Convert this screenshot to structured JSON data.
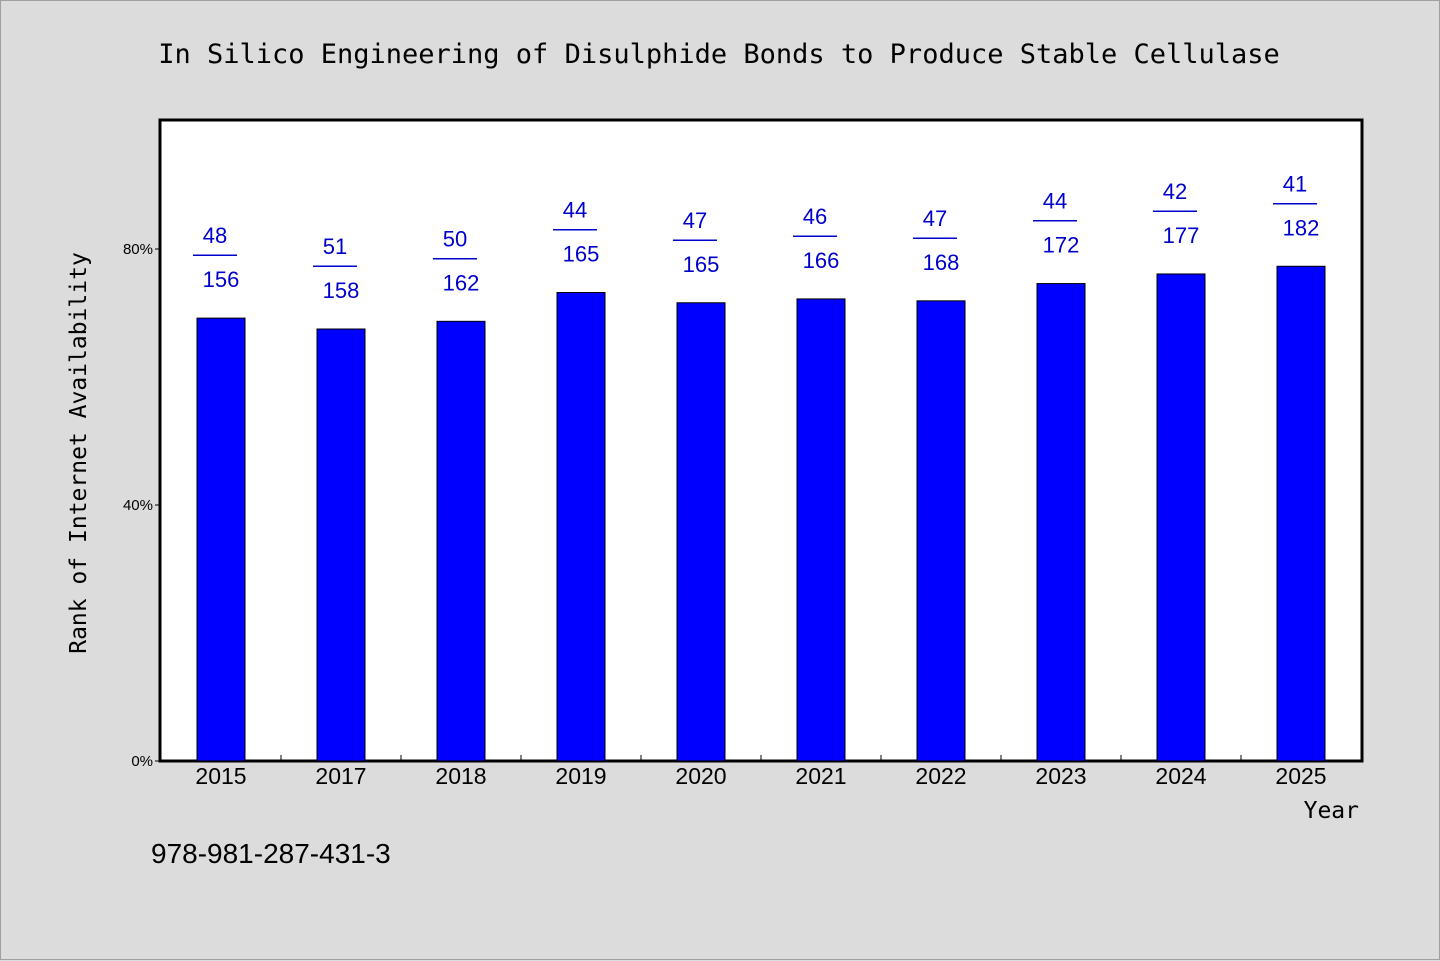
{
  "chart_data": {
    "type": "bar",
    "title": "In Silico Engineering of Disulphide Bonds to Produce Stable Cellulase",
    "xlabel": "Year",
    "ylabel": "Rank of Internet Availability",
    "categories": [
      "2015",
      "2017",
      "2018",
      "2019",
      "2020",
      "2021",
      "2022",
      "2023",
      "2024",
      "2025"
    ],
    "values": [
      69.2,
      67.5,
      68.7,
      73.2,
      71.6,
      72.2,
      71.9,
      74.6,
      76.1,
      77.3
    ],
    "labels_top": [
      "48",
      "51",
      "50",
      "44",
      "47",
      "46",
      "47",
      "44",
      "42",
      "41"
    ],
    "labels_sep": "——",
    "labels_bottom": [
      "156",
      "158",
      "162",
      "165",
      "165",
      "166",
      "168",
      "172",
      "177",
      "182"
    ],
    "ylim": [
      0,
      100
    ],
    "yticks": [
      0,
      40,
      80
    ],
    "ytick_labels": [
      "0%",
      "40%",
      "80%"
    ],
    "bar_color": "#0000ff",
    "label_color": "#0000cc",
    "grid": false
  },
  "footer_text": "978-981-287-431-3"
}
